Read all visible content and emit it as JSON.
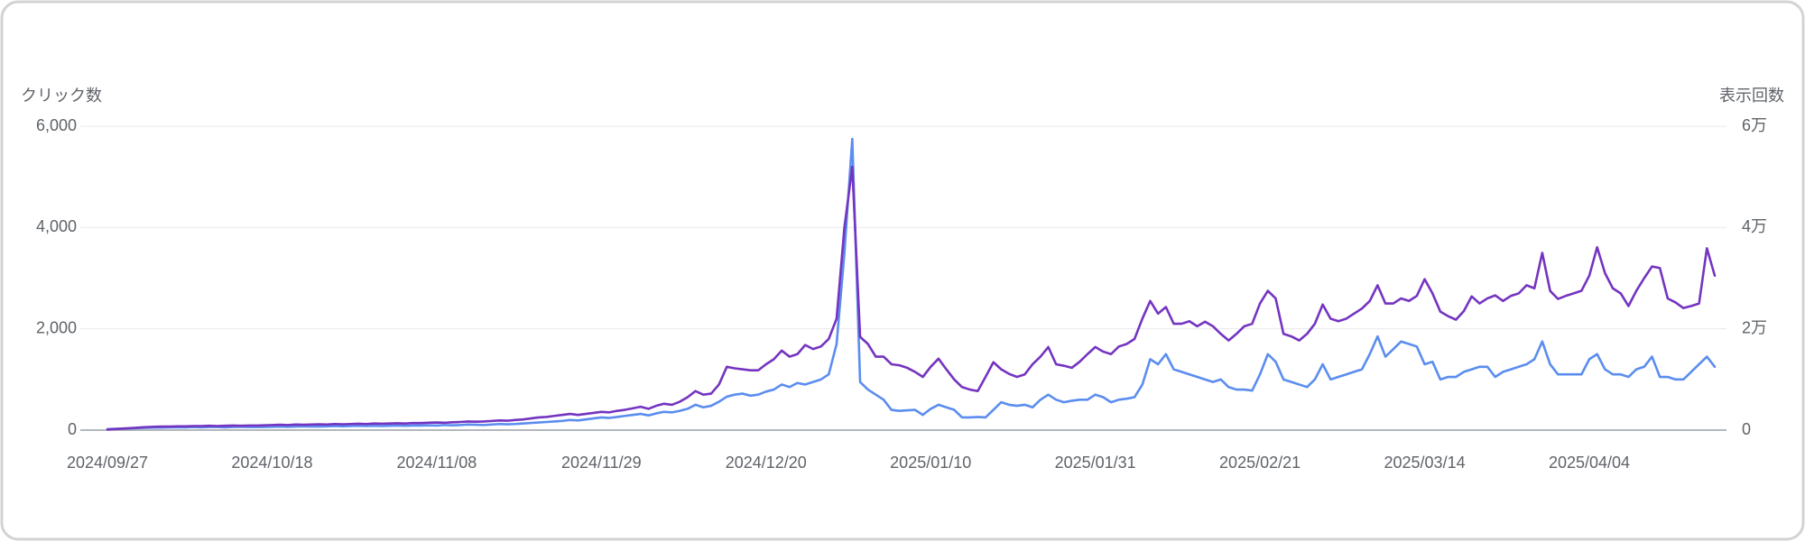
{
  "chart_data": {
    "type": "line",
    "y_label": "クリック数",
    "y2_label": "表示回数",
    "ylim": [
      0,
      6000
    ],
    "yticks": [
      0,
      {
        "value": 2000,
        "label": "2,000"
      },
      {
        "value": 4000,
        "label": "4,000"
      },
      {
        "value": 6000,
        "label": "6,000"
      }
    ],
    "y2lim": [
      0,
      60000
    ],
    "y2ticks": [
      0,
      {
        "value": 20000,
        "label": "2万"
      },
      {
        "value": 40000,
        "label": "4万"
      },
      {
        "value": 60000,
        "label": "6万"
      }
    ],
    "grid": true,
    "categories": [
      "2024/09/27",
      null,
      null,
      null,
      null,
      null,
      null,
      null,
      null,
      null,
      null,
      null,
      null,
      null,
      null,
      null,
      null,
      null,
      null,
      null,
      null,
      "2024/10/18",
      null,
      null,
      null,
      null,
      null,
      null,
      null,
      null,
      null,
      null,
      null,
      null,
      null,
      null,
      null,
      null,
      null,
      null,
      null,
      null,
      "2024/11/08",
      null,
      null,
      null,
      null,
      null,
      null,
      null,
      null,
      null,
      null,
      null,
      null,
      null,
      null,
      null,
      null,
      null,
      null,
      null,
      null,
      "2024/11/29",
      null,
      null,
      null,
      null,
      null,
      null,
      null,
      null,
      null,
      null,
      null,
      null,
      null,
      null,
      null,
      null,
      null,
      null,
      null,
      null,
      "2024/12/20",
      null,
      null,
      null,
      null,
      null,
      null,
      null,
      null,
      null,
      null,
      null,
      null,
      null,
      null,
      null,
      null,
      null,
      null,
      null,
      null,
      "2025/01/10",
      null,
      null,
      null,
      null,
      null,
      null,
      null,
      null,
      null,
      null,
      null,
      null,
      null,
      null,
      null,
      null,
      null,
      null,
      null,
      null,
      "2025/01/31",
      null,
      null,
      null,
      null,
      null,
      null,
      null,
      null,
      null,
      null,
      null,
      null,
      null,
      null,
      null,
      null,
      null,
      null,
      null,
      null,
      "2025/02/21",
      null,
      null,
      null,
      null,
      null,
      null,
      null,
      null,
      null,
      null,
      null,
      null,
      null,
      null,
      null,
      null,
      null,
      null,
      null,
      null,
      "2025/03/14",
      null,
      null,
      null,
      null,
      null,
      null,
      null,
      null,
      null,
      null,
      null,
      null,
      null,
      null,
      null,
      null,
      null,
      null,
      null,
      null,
      "2025/04/04",
      null,
      null,
      null,
      null,
      null,
      null,
      null,
      null,
      null,
      null,
      null,
      null,
      null,
      null,
      null,
      null
    ],
    "series": [
      {
        "color": "#5b8def",
        "axis": "y",
        "values": [
          20,
          25,
          30,
          35,
          40,
          45,
          50,
          50,
          55,
          55,
          55,
          60,
          55,
          60,
          60,
          55,
          60,
          65,
          60,
          60,
          60,
          65,
          70,
          65,
          70,
          75,
          70,
          70,
          75,
          80,
          75,
          80,
          85,
          80,
          85,
          80,
          85,
          90,
          85,
          90,
          90,
          95,
          90,
          100,
          95,
          100,
          110,
          105,
          100,
          110,
          120,
          115,
          120,
          130,
          140,
          150,
          160,
          170,
          180,
          200,
          190,
          210,
          230,
          250,
          240,
          260,
          280,
          300,
          320,
          290,
          330,
          360,
          350,
          380,
          420,
          500,
          450,
          480,
          560,
          660,
          700,
          720,
          680,
          700,
          760,
          800,
          900,
          850,
          930,
          900,
          950,
          1000,
          1100,
          1700,
          3500,
          5750,
          950,
          800,
          700,
          600,
          400,
          380,
          390,
          400,
          300,
          420,
          500,
          450,
          400,
          250,
          250,
          260,
          250,
          400,
          550,
          500,
          480,
          500,
          450,
          600,
          700,
          600,
          550,
          580,
          600,
          600,
          700,
          650,
          550,
          600,
          620,
          650,
          900,
          1400,
          1300,
          1500,
          1200,
          1150,
          1100,
          1050,
          1000,
          950,
          1000,
          850,
          800,
          800,
          780,
          1100,
          1500,
          1350,
          1000,
          950,
          900,
          850,
          1000,
          1300,
          1000,
          1050,
          1100,
          1150,
          1200,
          1500,
          1850,
          1450,
          1600,
          1750,
          1700,
          1650,
          1300,
          1350,
          1000,
          1050,
          1050,
          1150,
          1200,
          1250,
          1250,
          1050,
          1150,
          1200,
          1250,
          1300,
          1400,
          1750,
          1300,
          1100,
          1100,
          1100,
          1100,
          1400,
          1500,
          1200,
          1100,
          1100,
          1050,
          1200,
          1250,
          1450,
          1050,
          1050,
          1000,
          1000,
          1150,
          1300,
          1450,
          1250
        ]
      },
      {
        "color": "#7434c0",
        "axis": "y2",
        "values": [
          100,
          200,
          300,
          400,
          500,
          600,
          650,
          700,
          700,
          750,
          750,
          800,
          800,
          850,
          800,
          850,
          900,
          850,
          900,
          900,
          950,
          1000,
          1050,
          1000,
          1100,
          1050,
          1100,
          1150,
          1100,
          1200,
          1150,
          1200,
          1250,
          1200,
          1300,
          1250,
          1300,
          1350,
          1300,
          1400,
          1400,
          1450,
          1500,
          1450,
          1550,
          1600,
          1700,
          1650,
          1700,
          1800,
          1900,
          1850,
          2000,
          2100,
          2300,
          2500,
          2600,
          2800,
          3000,
          3200,
          3000,
          3200,
          3400,
          3600,
          3500,
          3800,
          4000,
          4300,
          4600,
          4200,
          4800,
          5200,
          5000,
          5600,
          6500,
          7700,
          7000,
          7200,
          9000,
          12500,
          12200,
          12000,
          11800,
          11800,
          13000,
          14000,
          15700,
          14500,
          15000,
          16800,
          16000,
          16500,
          18000,
          22000,
          40000,
          52000,
          18400,
          17000,
          14500,
          14500,
          13000,
          12800,
          12300,
          11500,
          10500,
          12500,
          14100,
          12000,
          10000,
          8500,
          8000,
          7700,
          10500,
          13400,
          12000,
          11100,
          10500,
          11000,
          13000,
          14500,
          16400,
          13000,
          12700,
          12300,
          13500,
          15000,
          16400,
          15500,
          15000,
          16500,
          17000,
          18000,
          22000,
          25500,
          23000,
          24300,
          21000,
          21000,
          21500,
          20500,
          21400,
          20500,
          19000,
          17700,
          19000,
          20500,
          21000,
          25000,
          27500,
          26000,
          19000,
          18500,
          17700,
          19000,
          21000,
          24800,
          22000,
          21500,
          22000,
          23000,
          24000,
          25500,
          28600,
          25000,
          25000,
          26000,
          25500,
          26500,
          29800,
          27000,
          23400,
          22500,
          21800,
          23500,
          26400,
          25000,
          26000,
          26600,
          25500,
          26500,
          27000,
          28600,
          28000,
          35000,
          27500,
          25900,
          26500,
          27000,
          27500,
          30500,
          36100,
          31000,
          28000,
          27000,
          24500,
          27500,
          30000,
          32300,
          32000,
          26000,
          25200,
          24100,
          24500,
          25000,
          35900,
          30500
        ]
      }
    ]
  }
}
